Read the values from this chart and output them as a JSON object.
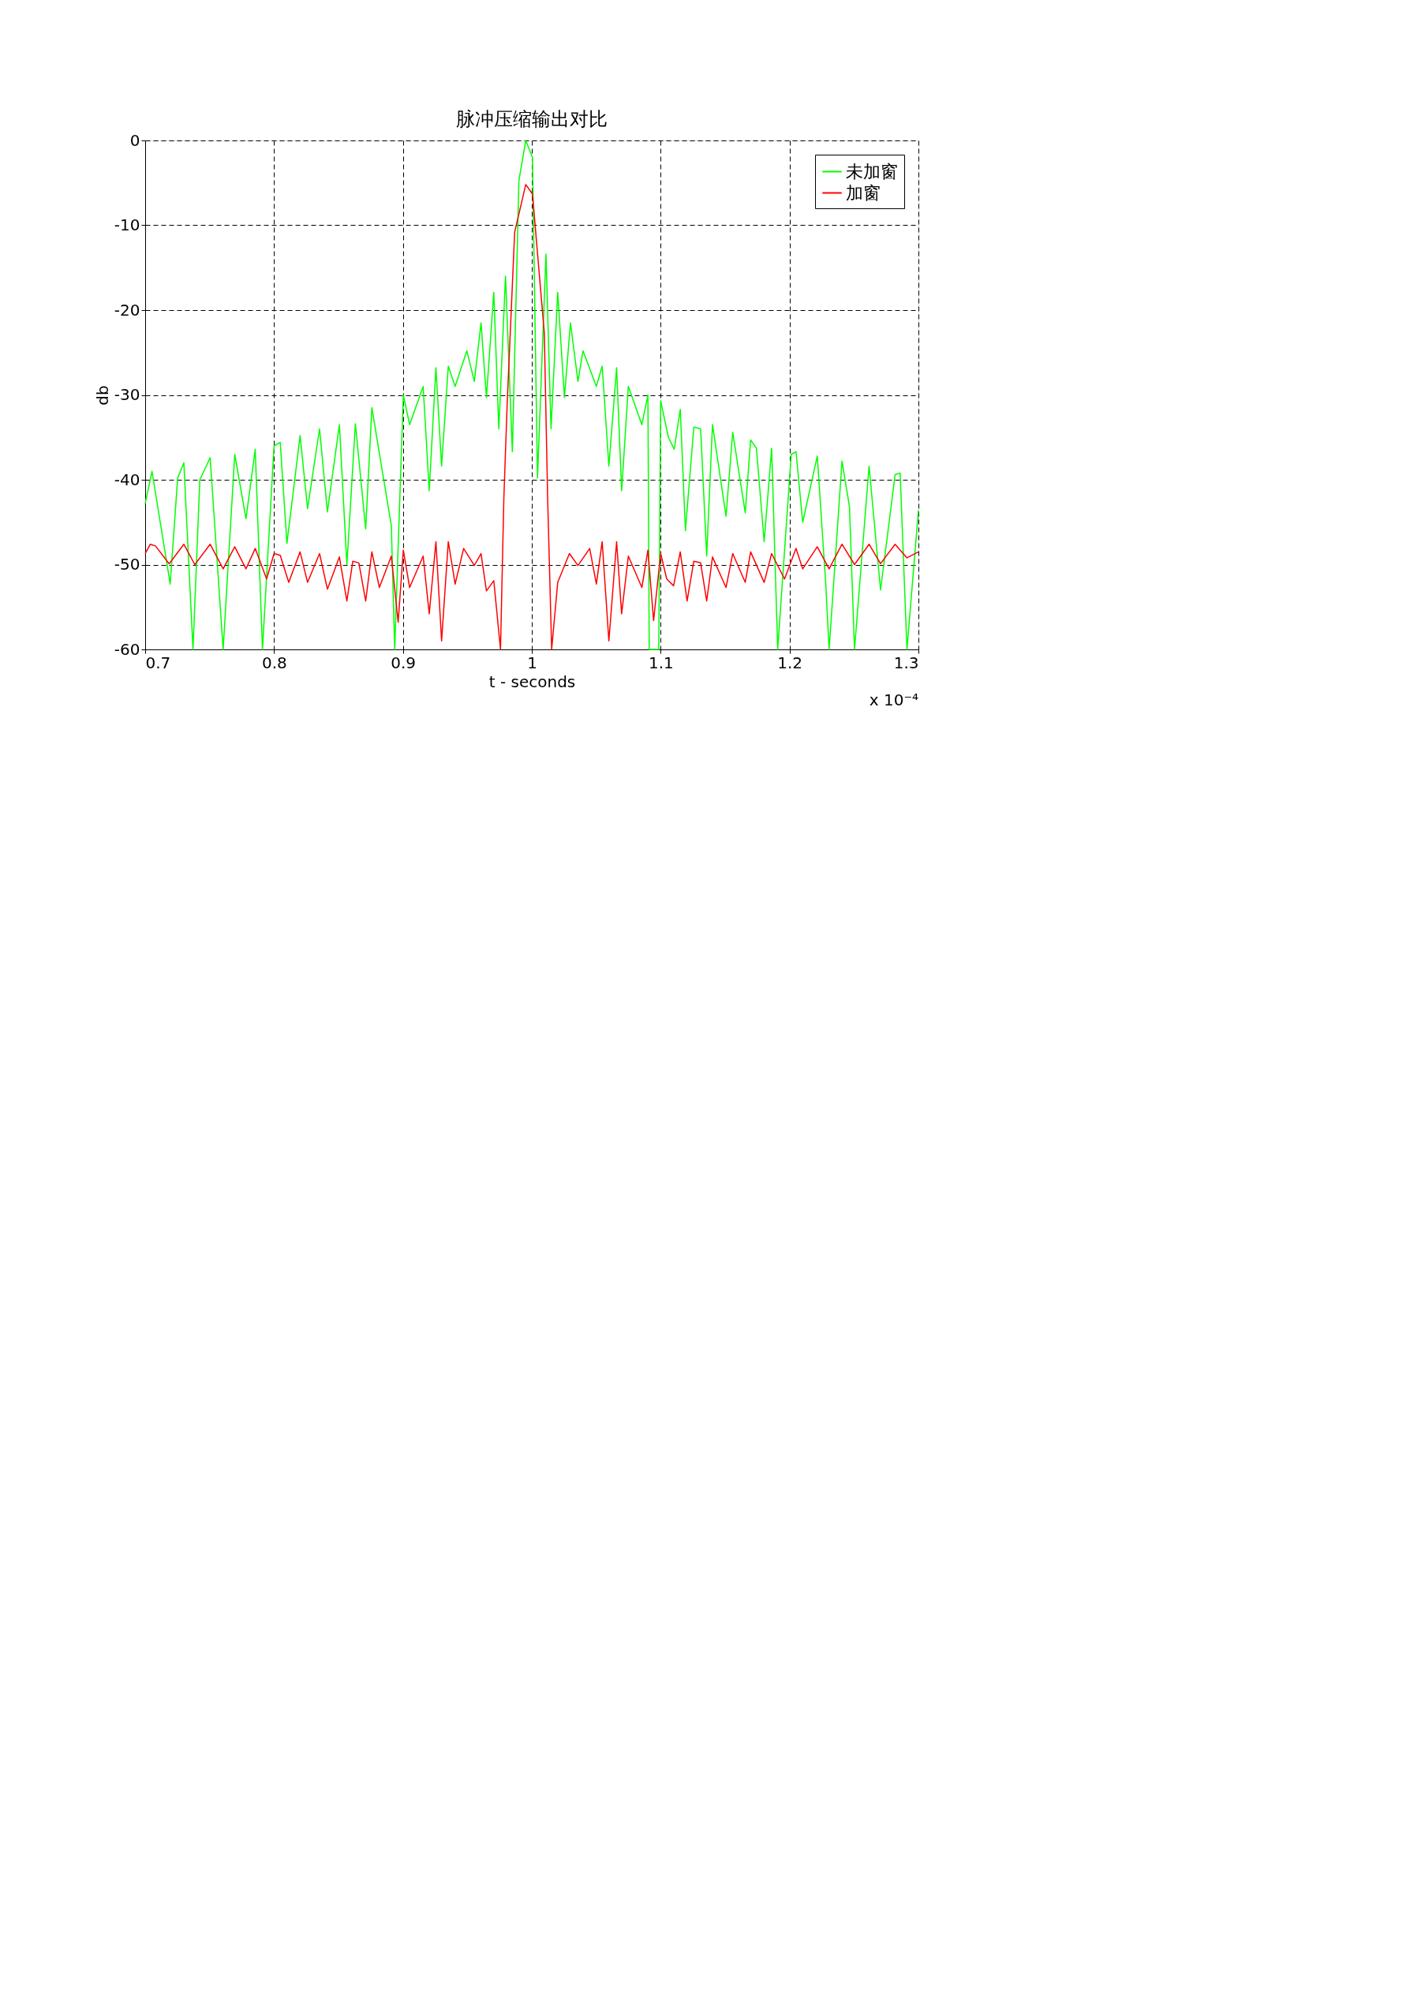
{
  "chart_data": {
    "type": "line",
    "title": "脉冲压缩输出对比",
    "xlabel": "t - seconds",
    "ylabel": "db",
    "annotations": [
      "x 10⁻⁴"
    ],
    "xlim": [
      0.7,
      1.3
    ],
    "xticks": [
      0.7,
      0.8,
      0.9,
      1,
      1.1,
      1.2,
      1.3
    ],
    "ylim": [
      -60,
      0
    ],
    "yticks": [
      -60,
      -50,
      -40,
      -30,
      -20,
      -10,
      0
    ],
    "grid": true,
    "legend": "top right",
    "line_style": "solid",
    "marker": "none",
    "series": [
      {
        "name": "未加窗",
        "color": "#00ff00",
        "x": [
          0.7,
          0.7053,
          0.7194,
          0.7252,
          0.73,
          0.7371,
          0.7424,
          0.7504,
          0.7605,
          0.7695,
          0.7782,
          0.7854,
          0.791,
          0.8,
          0.8048,
          0.81,
          0.8202,
          0.826,
          0.8353,
          0.8414,
          0.8507,
          0.8565,
          0.8631,
          0.8711,
          0.8759,
          0.8812,
          0.891,
          0.8936,
          0.9003,
          0.9052,
          0.9157,
          0.9204,
          0.9256,
          0.93,
          0.9352,
          0.9405,
          0.9496,
          0.9554,
          0.9606,
          0.9648,
          0.9705,
          0.9744,
          0.9796,
          0.9849,
          0.99,
          0.9953,
          1.0005,
          1.0044,
          1.011,
          1.0149,
          1.0201,
          1.0253,
          1.03,
          1.0358,
          1.0397,
          1.0501,
          1.0546,
          1.0598,
          1.0658,
          1.0697,
          1.0749,
          1.0854,
          1.0901,
          1.0911,
          1.0985,
          1.1,
          1.106,
          1.1105,
          1.1152,
          1.1192,
          1.1257,
          1.131,
          1.1357,
          1.1402,
          1.1507,
          1.1559,
          1.1656,
          1.1698,
          1.1743,
          1.1803,
          1.1861,
          1.1908,
          1.2013,
          1.205,
          1.2102,
          1.2215,
          1.2281,
          1.2307,
          1.2407,
          1.2465,
          1.2504,
          1.2617,
          1.2706,
          1.2819,
          1.2858,
          1.2911,
          1.3
        ],
        "values": [
          -42.8,
          -39,
          -52.3,
          -39.8,
          -38,
          -60,
          -40,
          -37.4,
          -60,
          -37,
          -44.6,
          -36.4,
          -60,
          -36,
          -35.6,
          -47.5,
          -34.8,
          -43.4,
          -34,
          -43.8,
          -33.5,
          -50,
          -33.4,
          -45.8,
          -31.5,
          -36.4,
          -45.4,
          -60,
          -30,
          -33.5,
          -29,
          -41.3,
          -26.8,
          -38.4,
          -26.6,
          -29,
          -24.8,
          -28.4,
          -21.5,
          -30.3,
          -17.9,
          -34,
          -16,
          -36.7,
          -4.7,
          0,
          -2,
          -39.8,
          -13.4,
          -34,
          -17.9,
          -30.3,
          -21.5,
          -28.4,
          -24.8,
          -29,
          -26.6,
          -38.4,
          -26.8,
          -41.3,
          -29,
          -33.5,
          -30,
          -60,
          -60,
          -30.7,
          -35,
          -36.4,
          -31.7,
          -46,
          -33.8,
          -34,
          -49,
          -33.5,
          -44.3,
          -34.4,
          -43.9,
          -35.3,
          -36.3,
          -47.3,
          -36.3,
          -60,
          -37,
          -36.7,
          -45,
          -37.2,
          -52.3,
          -60,
          -37.8,
          -43.2,
          -60,
          -38.4,
          -53,
          -39.4,
          -39.2,
          -60,
          -43.6
        ]
      },
      {
        "name": "加窗",
        "color": "#ff0000",
        "x": [
          0.7,
          0.704,
          0.708,
          0.7186,
          0.73,
          0.7385,
          0.7504,
          0.7605,
          0.7695,
          0.7782,
          0.7854,
          0.7942,
          0.8,
          0.8048,
          0.8114,
          0.8202,
          0.826,
          0.8353,
          0.8414,
          0.8507,
          0.8565,
          0.8611,
          0.8658,
          0.8711,
          0.8759,
          0.8817,
          0.891,
          0.8963,
          0.9003,
          0.9052,
          0.9157,
          0.9204,
          0.9256,
          0.93,
          0.9352,
          0.9405,
          0.9471,
          0.9554,
          0.9606,
          0.9648,
          0.9705,
          0.9757,
          0.9783,
          0.9809,
          0.9867,
          0.9953,
          1.0005,
          1.0097,
          1.0123,
          1.0154,
          1.0201,
          1.0292,
          1.0358,
          1.0449,
          1.0501,
          1.0546,
          1.0598,
          1.0658,
          1.0697,
          1.0749,
          1.0854,
          1.0901,
          1.0945,
          1.1,
          1.1047,
          1.11,
          1.1152,
          1.1205,
          1.1257,
          1.131,
          1.1357,
          1.1402,
          1.1507,
          1.1559,
          1.1656,
          1.1698,
          1.1803,
          1.1861,
          1.1961,
          1.205,
          1.2102,
          1.2215,
          1.2307,
          1.2407,
          1.2504,
          1.2617,
          1.2706,
          1.2819,
          1.2911,
          1.3
        ],
        "values": [
          -48.7,
          -47.6,
          -47.8,
          -49.9,
          -47.6,
          -50,
          -47.6,
          -50.5,
          -47.9,
          -50.5,
          -48.1,
          -51.7,
          -48.7,
          -48.9,
          -52.1,
          -48.5,
          -52.1,
          -48.7,
          -52.9,
          -49.1,
          -54.3,
          -49.6,
          -49.8,
          -54.3,
          -48.5,
          -52.7,
          -49,
          -56.8,
          -48.3,
          -52.7,
          -49,
          -55.8,
          -47.3,
          -59,
          -47.3,
          -52.3,
          -48.1,
          -50.1,
          -48.7,
          -53.1,
          -51.9,
          -60,
          -42.2,
          -31,
          -10.8,
          -5.2,
          -6.3,
          -22.7,
          -42.2,
          -60,
          -52.1,
          -48.7,
          -50.1,
          -48.1,
          -52.3,
          -47.3,
          -59,
          -47.3,
          -55.8,
          -49,
          -52.7,
          -48.3,
          -56.6,
          -48.7,
          -51.7,
          -52.5,
          -48.5,
          -54.3,
          -49.6,
          -49.8,
          -54.3,
          -49.1,
          -52.7,
          -48.7,
          -52.1,
          -48.5,
          -52.1,
          -48.7,
          -51.7,
          -48.1,
          -50.5,
          -47.9,
          -50.5,
          -47.6,
          -50,
          -47.6,
          -49.9,
          -47.6,
          -49.2,
          -48.5
        ]
      }
    ]
  }
}
